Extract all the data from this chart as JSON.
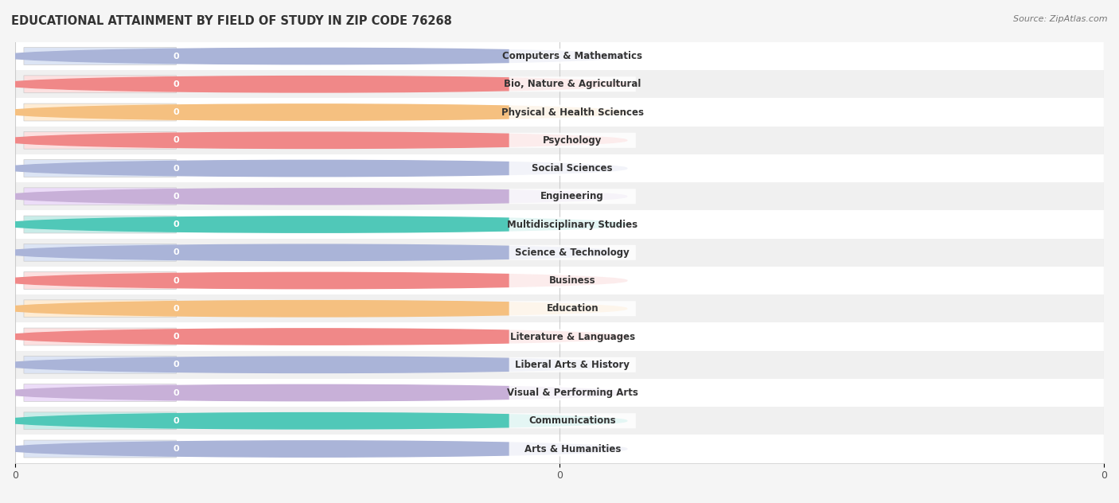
{
  "title": "EDUCATIONAL ATTAINMENT BY FIELD OF STUDY IN ZIP CODE 76268",
  "source": "Source: ZipAtlas.com",
  "categories": [
    "Computers & Mathematics",
    "Bio, Nature & Agricultural",
    "Physical & Health Sciences",
    "Psychology",
    "Social Sciences",
    "Engineering",
    "Multidisciplinary Studies",
    "Science & Technology",
    "Business",
    "Education",
    "Literature & Languages",
    "Liberal Arts & History",
    "Visual & Performing Arts",
    "Communications",
    "Arts & Humanities"
  ],
  "values": [
    0,
    0,
    0,
    0,
    0,
    0,
    0,
    0,
    0,
    0,
    0,
    0,
    0,
    0,
    0
  ],
  "bar_colors": [
    "#aab4d8",
    "#f08888",
    "#f5c080",
    "#f08888",
    "#aab4d8",
    "#c8b0d8",
    "#50c8b8",
    "#aab4d8",
    "#f08888",
    "#f5c080",
    "#f08888",
    "#aab4d8",
    "#c8b0d8",
    "#50c8b8",
    "#aab4d8"
  ],
  "bar_bg_colors": [
    "#dce4f4",
    "#fce0e0",
    "#feecd4",
    "#fce0e0",
    "#dce4f4",
    "#ecdcf8",
    "#c8ece8",
    "#dce4f4",
    "#fce0e0",
    "#feecd4",
    "#fce0e0",
    "#dce4f4",
    "#ecdcf8",
    "#c8ece8",
    "#dce4f4"
  ],
  "row_colors": [
    "#ffffff",
    "#f0f0f0"
  ],
  "background_color": "#f5f5f5",
  "title_fontsize": 10.5,
  "source_fontsize": 8,
  "bar_label_fontsize": 8.5,
  "value_fontsize": 8,
  "figsize": [
    14.06,
    6.32
  ],
  "dpi": 100,
  "xlim": [
    0,
    1
  ],
  "n_xticks": 3,
  "xtick_positions": [
    0,
    0.5,
    1.0
  ],
  "xtick_labels": [
    "0",
    "0",
    "0"
  ]
}
